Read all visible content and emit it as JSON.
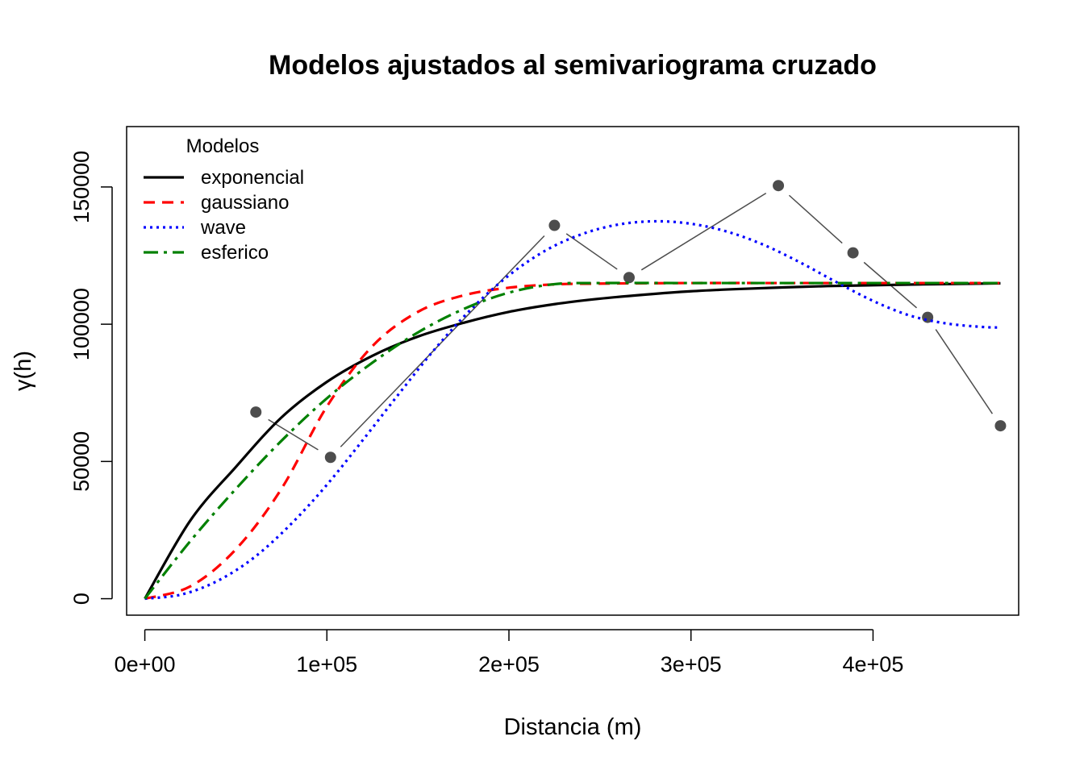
{
  "chart_data": {
    "type": "line",
    "title": "Modelos ajustados al semivariograma cruzado",
    "xlabel": "Distancia (m)",
    "ylabel": "γ(h)",
    "xlim": [
      -10000,
      480000
    ],
    "ylim": [
      -6000,
      172000
    ],
    "xticks": [
      0,
      100000,
      200000,
      300000,
      400000
    ],
    "xtick_labels": [
      "0e+00",
      "1e+05",
      "2e+05",
      "3e+05",
      "4e+05"
    ],
    "yticks": [
      0,
      50000,
      100000,
      150000
    ],
    "ytick_labels": [
      "0",
      "50000",
      "100000",
      "150000"
    ],
    "grid": false,
    "legend": {
      "title": "Modelos",
      "position": "top-left",
      "entries": [
        "exponencial",
        "gaussiano",
        "wave",
        "esferico"
      ]
    },
    "empirical": {
      "x": [
        61000,
        102000,
        225000,
        266000,
        348000,
        389000,
        430000,
        470000
      ],
      "y": [
        68000,
        51500,
        136000,
        117000,
        150500,
        126000,
        102500,
        63000
      ],
      "color": "#4d4d4d"
    },
    "series": [
      {
        "name": "exponencial",
        "color": "#000000",
        "dash": "",
        "x": [
          0,
          25000,
          50000,
          75000,
          100000,
          125000,
          150000,
          175000,
          200000,
          225000,
          250000,
          275000,
          300000,
          325000,
          350000,
          375000,
          400000,
          425000,
          450000,
          470000
        ],
        "y": [
          0,
          28500,
          48000,
          66000,
          79000,
          88500,
          95500,
          100500,
          104500,
          107300,
          109300,
          110800,
          112000,
          112800,
          113400,
          113900,
          114200,
          114500,
          114700,
          114900
        ]
      },
      {
        "name": "gaussiano",
        "color": "#ff0000",
        "dash": "14,9",
        "x": [
          0,
          25000,
          50000,
          75000,
          100000,
          125000,
          150000,
          175000,
          200000,
          225000,
          250000,
          300000,
          350000,
          400000,
          470000
        ],
        "y": [
          0,
          4500,
          18000,
          40000,
          70000,
          92000,
          104500,
          110500,
          113300,
          114500,
          114800,
          115000,
          115000,
          115000,
          115000
        ]
      },
      {
        "name": "wave",
        "color": "#0000ff",
        "dash": "3,5",
        "x": [
          0,
          20000,
          40000,
          60000,
          80000,
          100000,
          120000,
          140000,
          160000,
          180000,
          200000,
          220000,
          240000,
          260000,
          280000,
          300000,
          320000,
          340000,
          360000,
          380000,
          400000,
          420000,
          440000,
          460000,
          470000
        ],
        "y": [
          0,
          1500,
          6500,
          15000,
          27000,
          41500,
          58000,
          75000,
          91500,
          106000,
          117800,
          126800,
          132800,
          136300,
          137500,
          136600,
          133700,
          128900,
          122500,
          115300,
          108500,
          103200,
          100300,
          99000,
          98800
        ]
      },
      {
        "name": "esferico",
        "color": "#008000",
        "dash": "18,7,4,7",
        "x": [
          0,
          25000,
          50000,
          75000,
          100000,
          125000,
          150000,
          175000,
          200000,
          225000,
          250000,
          300000,
          350000,
          400000,
          470000
        ],
        "y": [
          0,
          21000,
          40000,
          57500,
          73000,
          86000,
          97000,
          105500,
          111500,
          114600,
          115000,
          115000,
          115000,
          115000,
          115000
        ]
      }
    ]
  }
}
